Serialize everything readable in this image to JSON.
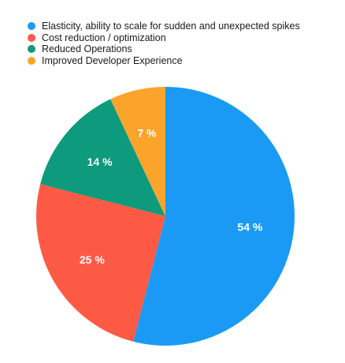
{
  "chart_data": {
    "type": "pie",
    "slices": [
      {
        "label": "Elasticity, ability to scale for sudden and unexpected spikes",
        "value": 54,
        "value_label": "54 %",
        "color": "#1a9af5"
      },
      {
        "label": "Cost reduction / optimization",
        "value": 25,
        "value_label": "25 %",
        "color": "#fd5a45"
      },
      {
        "label": "Reduced Operations",
        "value": 14,
        "value_label": "14 %",
        "color": "#0e9a7c"
      },
      {
        "label": "Improved Developer Experience",
        "value": 7,
        "value_label": "7 %",
        "color": "#fba42b"
      }
    ],
    "legend_position": "top-left",
    "start": "12 o'clock",
    "direction": "clockwise"
  }
}
